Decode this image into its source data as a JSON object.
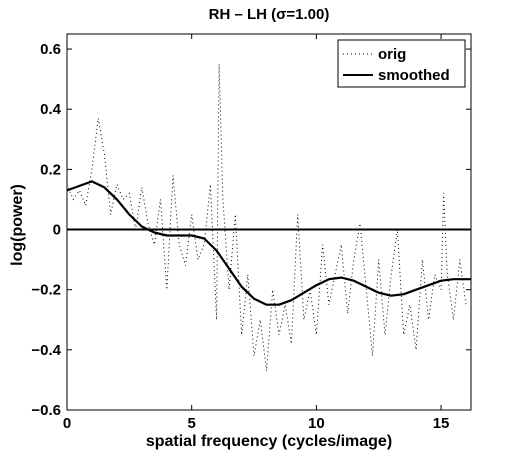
{
  "chart_data": {
    "type": "line",
    "title": "RH – LH (σ=1.00)",
    "xlabel": "spatial frequency (cycles/image)",
    "ylabel": "log(power)",
    "xlim": [
      0,
      16.2
    ],
    "ylim": [
      -0.6,
      0.65
    ],
    "xticks": [
      0,
      5,
      10,
      15
    ],
    "yticks": [
      -0.6,
      -0.4,
      -0.2,
      0,
      0.2,
      0.4,
      0.6
    ],
    "xtick_labels": [
      "0",
      "5",
      "10",
      "15"
    ],
    "ytick_labels": [
      "−0.6",
      "−0.4",
      "−0.2",
      "0",
      "0.2",
      "0.4",
      "0.6"
    ],
    "legend_position": "top-right",
    "grid": false,
    "zero_line": 0,
    "series": [
      {
        "name": "orig",
        "style": "dotted",
        "color": "#000000",
        "x": [
          0,
          0.25,
          0.5,
          0.75,
          1.0,
          1.25,
          1.5,
          1.75,
          2.0,
          2.25,
          2.5,
          2.75,
          3.0,
          3.25,
          3.5,
          3.75,
          4.0,
          4.25,
          4.5,
          4.75,
          5.0,
          5.25,
          5.5,
          5.75,
          6.0,
          6.1,
          6.25,
          6.5,
          6.75,
          7.0,
          7.25,
          7.5,
          7.75,
          8.0,
          8.25,
          8.5,
          8.75,
          9.0,
          9.25,
          9.5,
          9.75,
          10.0,
          10.25,
          10.5,
          10.75,
          11.0,
          11.25,
          11.5,
          11.75,
          12.0,
          12.25,
          12.5,
          12.75,
          13.0,
          13.25,
          13.5,
          13.75,
          14.0,
          14.25,
          14.5,
          14.75,
          15.0,
          15.1,
          15.25,
          15.5,
          15.75,
          16.0
        ],
        "y": [
          0.15,
          0.1,
          0.13,
          0.08,
          0.2,
          0.37,
          0.25,
          0.05,
          0.15,
          0.1,
          0.12,
          0.0,
          0.14,
          0.02,
          -0.05,
          0.1,
          -0.2,
          0.18,
          -0.05,
          -0.12,
          0.05,
          -0.1,
          -0.05,
          0.15,
          -0.3,
          0.55,
          0.1,
          -0.2,
          0.05,
          -0.35,
          -0.15,
          -0.42,
          -0.3,
          -0.47,
          -0.2,
          -0.35,
          -0.25,
          -0.38,
          0.05,
          -0.3,
          -0.2,
          -0.35,
          -0.05,
          -0.25,
          -0.15,
          -0.05,
          -0.28,
          -0.1,
          0.02,
          -0.2,
          -0.42,
          -0.1,
          -0.35,
          -0.15,
          0.0,
          -0.35,
          -0.25,
          -0.4,
          -0.1,
          -0.3,
          -0.15,
          -0.2,
          0.12,
          -0.15,
          -0.3,
          -0.1,
          -0.25
        ]
      },
      {
        "name": "smoothed",
        "style": "solid",
        "color": "#000000",
        "x": [
          0,
          0.5,
          1.0,
          1.5,
          2.0,
          2.5,
          3.0,
          3.5,
          4.0,
          4.5,
          5.0,
          5.5,
          6.0,
          6.5,
          7.0,
          7.5,
          8.0,
          8.5,
          9.0,
          9.5,
          10.0,
          10.5,
          11.0,
          11.5,
          12.0,
          12.5,
          13.0,
          13.5,
          14.0,
          14.5,
          15.0,
          15.5,
          16.0,
          16.2
        ],
        "y": [
          0.13,
          0.145,
          0.16,
          0.14,
          0.1,
          0.05,
          0.01,
          -0.01,
          -0.02,
          -0.02,
          -0.02,
          -0.03,
          -0.07,
          -0.13,
          -0.19,
          -0.23,
          -0.25,
          -0.25,
          -0.235,
          -0.21,
          -0.185,
          -0.165,
          -0.16,
          -0.17,
          -0.19,
          -0.21,
          -0.22,
          -0.215,
          -0.2,
          -0.185,
          -0.17,
          -0.165,
          -0.165,
          -0.165
        ]
      }
    ]
  }
}
